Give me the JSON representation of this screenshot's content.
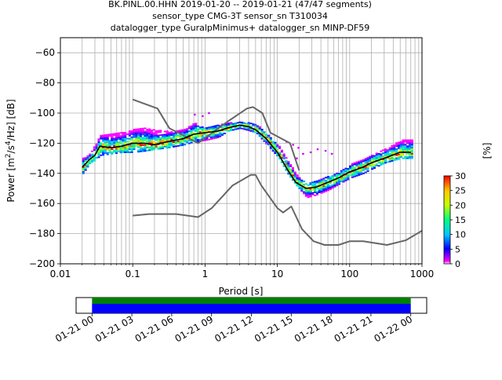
{
  "chart_data": [
    {
      "type": "heatmap",
      "title_lines": [
        "BK.PINL.00.HHN   2019-01-20 -- 2019-01-21  (47/47 segments)",
        "sensor_type CMG-3T sensor_sn T310034",
        "datalogger_type GuralpMinimus+ datalogger_sn MINP-DF59"
      ],
      "xlabel": "Period [s]",
      "ylabel_parts": {
        "pre": "Power [m",
        "sup1": "2",
        "mid": "/s",
        "sup2": "4",
        "post": "/Hz] [dB]"
      },
      "x_scale": "log",
      "xlim": [
        0.01,
        1000
      ],
      "ylim": [
        -200,
        -50
      ],
      "x_ticks": [
        {
          "v": 0.01,
          "label": "0.01"
        },
        {
          "v": 0.1,
          "label": "0.1"
        },
        {
          "v": 1,
          "label": "1"
        },
        {
          "v": 10,
          "label": "10"
        },
        {
          "v": 100,
          "label": "100"
        },
        {
          "v": 1000,
          "label": "1000"
        }
      ],
      "y_ticks": [
        {
          "v": -60,
          "label": "−60"
        },
        {
          "v": -80,
          "label": "−80"
        },
        {
          "v": -100,
          "label": "−100"
        },
        {
          "v": -120,
          "label": "−120"
        },
        {
          "v": -140,
          "label": "−140"
        },
        {
          "v": -160,
          "label": "−160"
        },
        {
          "v": -180,
          "label": "−180"
        },
        {
          "v": -200,
          "label": "−200"
        }
      ],
      "grid": true,
      "noise_models": {
        "color": "#666666",
        "high": [
          [
            0.1,
            -91
          ],
          [
            0.22,
            -97
          ],
          [
            0.32,
            -110
          ],
          [
            0.8,
            -120
          ],
          [
            2,
            -106
          ],
          [
            3.8,
            -97
          ],
          [
            4.6,
            -96
          ],
          [
            6.2,
            -100
          ],
          [
            8,
            -113
          ],
          [
            15,
            -120
          ],
          [
            20,
            -138
          ]
        ],
        "low": [
          [
            0.1,
            -168
          ],
          [
            0.17,
            -167
          ],
          [
            0.4,
            -167
          ],
          [
            0.8,
            -169
          ],
          [
            1.24,
            -163
          ],
          [
            2.4,
            -148
          ],
          [
            4.3,
            -141
          ],
          [
            5,
            -141
          ],
          [
            6,
            -148
          ],
          [
            10,
            -163
          ],
          [
            12,
            -166
          ],
          [
            15.6,
            -162
          ],
          [
            21.9,
            -177
          ],
          [
            31.6,
            -185
          ],
          [
            45,
            -187.5
          ],
          [
            70,
            -187.5
          ],
          [
            101,
            -185
          ],
          [
            154,
            -185
          ],
          [
            328,
            -187.5
          ],
          [
            600,
            -184.4
          ],
          [
            1000,
            -178
          ]
        ]
      },
      "psd_band": [
        [
          0.02,
          -140,
          -130
        ],
        [
          0.025,
          -133,
          -127
        ],
        [
          0.03,
          -131,
          -120
        ],
        [
          0.035,
          -128,
          -115
        ],
        [
          0.05,
          -127,
          -114
        ],
        [
          0.07,
          -126,
          -113
        ],
        [
          0.1,
          -126,
          -111
        ],
        [
          0.15,
          -125,
          -110
        ],
        [
          0.2,
          -124,
          -111
        ],
        [
          0.3,
          -123,
          -112
        ],
        [
          0.5,
          -121,
          -111
        ],
        [
          0.7,
          -119,
          -106
        ],
        [
          1,
          -118,
          -110
        ],
        [
          1.5,
          -116,
          -108
        ],
        [
          2,
          -112,
          -106
        ],
        [
          3,
          -110,
          -106
        ],
        [
          5,
          -113,
          -107
        ],
        [
          7,
          -121,
          -114
        ],
        [
          10,
          -129,
          -121
        ],
        [
          14,
          -141,
          -132
        ],
        [
          18,
          -148,
          -141
        ],
        [
          25,
          -156,
          -147
        ],
        [
          35,
          -154,
          -145
        ],
        [
          50,
          -151,
          -142
        ],
        [
          70,
          -147,
          -139
        ],
        [
          100,
          -143,
          -134
        ],
        [
          150,
          -140,
          -131
        ],
        [
          200,
          -137,
          -127
        ],
        [
          300,
          -133,
          -124
        ],
        [
          500,
          -130,
          -118
        ],
        [
          700,
          -130,
          -118
        ]
      ],
      "psd_outliers": [
        [
          18,
          -130
        ],
        [
          22,
          -127
        ],
        [
          28,
          -126
        ],
        [
          35,
          -124
        ],
        [
          45,
          -125
        ],
        [
          55,
          -127
        ],
        [
          13,
          -119
        ],
        [
          16,
          -121
        ],
        [
          19,
          -123
        ],
        [
          0.7,
          -101
        ],
        [
          0.9,
          -102
        ],
        [
          1.1,
          -100
        ]
      ],
      "mode_line": [
        [
          0.02,
          -136
        ],
        [
          0.025,
          -131
        ],
        [
          0.03,
          -128
        ],
        [
          0.035,
          -122
        ],
        [
          0.05,
          -123
        ],
        [
          0.07,
          -122
        ],
        [
          0.1,
          -120
        ],
        [
          0.15,
          -120
        ],
        [
          0.2,
          -121
        ],
        [
          0.3,
          -119
        ],
        [
          0.5,
          -117
        ],
        [
          0.7,
          -114
        ],
        [
          1,
          -113
        ],
        [
          1.5,
          -112
        ],
        [
          2,
          -110
        ],
        [
          3,
          -108
        ],
        [
          4,
          -109
        ],
        [
          5,
          -111
        ],
        [
          7,
          -117
        ],
        [
          10,
          -126
        ],
        [
          14,
          -138
        ],
        [
          18,
          -146
        ],
        [
          25,
          -150
        ],
        [
          35,
          -149
        ],
        [
          50,
          -146
        ],
        [
          70,
          -143
        ],
        [
          100,
          -139
        ],
        [
          150,
          -136
        ],
        [
          200,
          -133
        ],
        [
          300,
          -130
        ],
        [
          500,
          -126
        ],
        [
          700,
          -126
        ]
      ],
      "colorbar": {
        "label": "[%]",
        "min": 0,
        "max": 30,
        "ticks": [
          {
            "v": 0,
            "label": "0"
          },
          {
            "v": 5,
            "label": "5"
          },
          {
            "v": 10,
            "label": "10"
          },
          {
            "v": 15,
            "label": "15"
          },
          {
            "v": 20,
            "label": "20"
          },
          {
            "v": 25,
            "label": "25"
          },
          {
            "v": 30,
            "label": "30"
          }
        ]
      }
    },
    {
      "type": "timeline",
      "time_ticks": [
        {
          "v": 0,
          "label": "01-21 00"
        },
        {
          "v": 3,
          "label": "01-21 03"
        },
        {
          "v": 6,
          "label": "01-21 06"
        },
        {
          "v": 9,
          "label": "01-21 09"
        },
        {
          "v": 12,
          "label": "01-21 12"
        },
        {
          "v": 15,
          "label": "01-21 15"
        },
        {
          "v": 18,
          "label": "01-21 18"
        },
        {
          "v": 21,
          "label": "01-21 21"
        },
        {
          "v": 24,
          "label": "01-22 00"
        }
      ],
      "range_hours": [
        -1.2,
        25.2
      ],
      "coverage": [
        0,
        24
      ],
      "bar_colors": {
        "top": "#008000",
        "bottom": "#0000ff"
      }
    }
  ]
}
